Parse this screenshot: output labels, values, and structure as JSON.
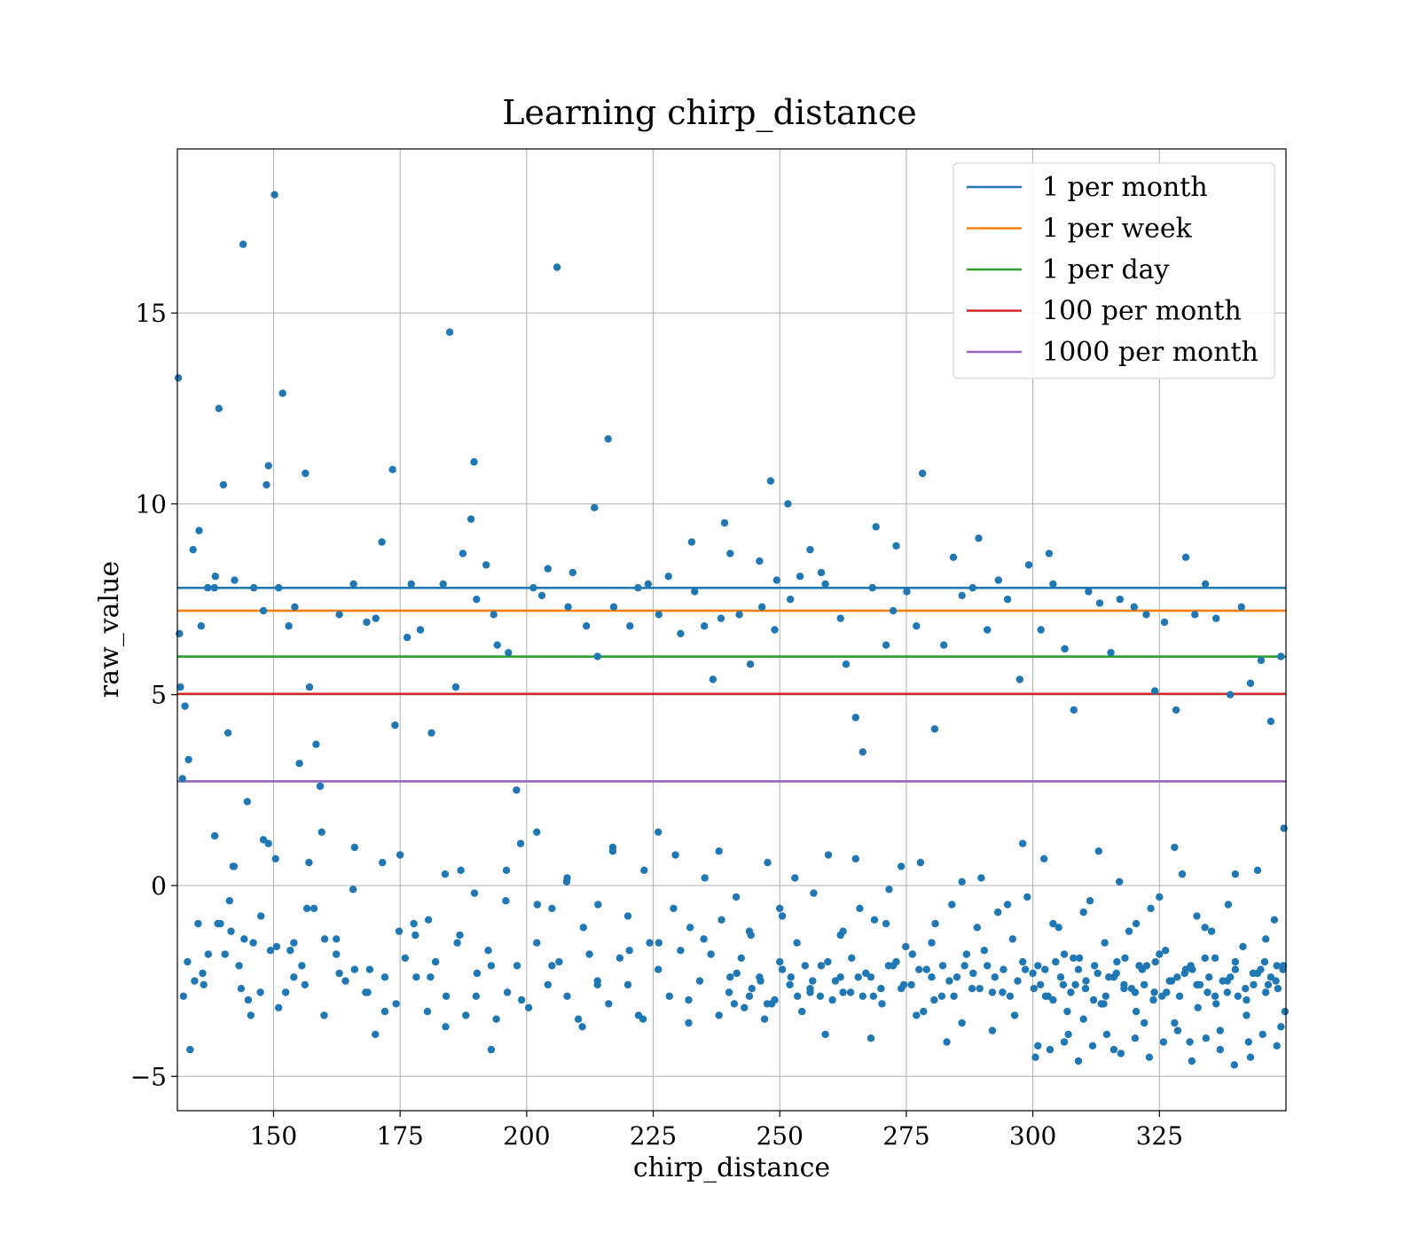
{
  "chart_data": {
    "type": "scatter",
    "title": "Learning chirp_distance",
    "xlabel": "chirp_distance",
    "ylabel": "raw_value",
    "xlim": [
      131,
      350
    ],
    "ylim": [
      -5.9,
      19.3
    ],
    "xticks": [
      150,
      175,
      200,
      225,
      250,
      275,
      300,
      325
    ],
    "xtick_labels": [
      "150",
      "175",
      "200",
      "225",
      "250",
      "275",
      "300",
      "325"
    ],
    "yticks": [
      -5,
      0,
      5,
      10,
      15
    ],
    "ytick_labels": [
      "−5",
      "0",
      "5",
      "10",
      "15"
    ],
    "grid": true,
    "legend_position": "top-right",
    "point_color": "#1f77b4",
    "thresholds": [
      {
        "name": "1 per month",
        "value": 7.8,
        "color": "#1f77b4"
      },
      {
        "name": "1 per week",
        "value": 7.2,
        "color": "#ff7f0e"
      },
      {
        "name": "1 per day",
        "value": 6.0,
        "color": "#2ca02c"
      },
      {
        "name": "100 per month",
        "value": 5.02,
        "color": "#d62728"
      },
      {
        "name": "1000 per month",
        "value": 2.73,
        "color": "#9467bd"
      }
    ],
    "points": {
      "x": [
        131.2,
        131.6,
        132.0,
        133.5,
        134.1,
        135.3,
        136.2,
        137.0,
        138.5,
        139.2,
        140.1,
        140.4,
        141.6,
        142.3,
        143.2,
        144.0,
        145.5,
        146.1,
        148.0,
        148.6,
        149.0,
        149.4,
        150.2,
        151.0,
        151.8,
        153.0,
        154.2,
        155.1,
        155.6,
        156.3,
        157.1,
        158.4,
        159.2,
        163.0,
        165.8,
        168.4,
        170.2,
        171.4,
        173.5,
        174.0,
        176.4,
        177.2,
        179.0,
        181.2,
        183.5,
        184.8,
        186.0,
        187.4,
        189.0,
        189.6,
        190.1,
        192.0,
        193.5,
        194.2,
        196.4,
        198.0,
        201.3,
        203.0,
        204.2,
        206.0,
        208.2,
        209.1,
        211.8,
        213.4,
        214.0,
        216.1,
        217.2,
        220.4,
        222.0,
        224.0,
        226.1,
        228.0,
        230.4,
        232.6,
        233.2,
        235.1,
        236.8,
        238.4,
        239.1,
        240.2,
        242.0,
        244.2,
        246.0,
        246.5,
        248.2,
        249.0,
        249.4,
        251.6,
        252.1,
        254.0,
        256.0,
        258.2,
        259.0,
        262.0,
        263.1,
        265.0,
        266.4,
        268.3,
        269.0,
        271.0,
        272.4,
        273.0,
        275.1,
        277.0,
        278.2,
        280.6,
        282.4,
        284.3,
        286.0,
        288.1,
        289.3,
        291.0,
        293.2,
        295.0,
        297.4,
        299.2,
        301.6,
        303.2,
        304.0,
        306.3,
        308.1,
        311.0,
        313.2,
        315.4,
        317.2,
        320.0,
        322.4,
        324.1,
        326.0,
        328.3,
        330.2,
        332.0,
        334.1,
        336.2,
        339.0,
        341.2,
        343.0,
        345.1,
        347.0,
        349.0,
        349.6,
        131.4,
        132.5,
        133.2,
        134.4,
        135.7,
        137.1,
        138.3,
        139.5,
        141.0,
        142.2,
        143.6,
        144.8,
        146.0,
        147.4,
        149.0,
        150.6,
        152.4,
        154.0,
        156.2,
        158.0,
        160.1,
        162.4,
        164.2,
        166.0,
        168.2,
        170.1,
        172.0,
        174.2,
        176.0,
        178.2,
        180.4,
        182.0,
        184.1,
        186.3,
        188.0,
        190.2,
        192.4,
        194.0,
        196.2,
        198.1,
        200.4,
        202.0,
        204.2,
        206.4,
        208.0,
        210.2,
        212.4,
        214.0,
        216.2,
        218.4,
        220.0,
        222.1,
        224.3,
        226.0,
        228.2,
        230.4,
        232.0,
        234.2,
        236.4,
        238.0,
        240.2,
        242.4,
        244.0,
        246.2,
        248.4,
        250.0,
        252.2,
        254.4,
        256.0,
        258.2,
        260.4,
        262.0,
        264.2,
        266.4,
        268.0,
        270.2,
        272.4,
        274.0,
        276.2,
        278.4,
        280.0,
        282.2,
        284.4,
        286.0,
        288.2,
        290.4,
        292.0,
        294.2,
        296.4,
        298.0,
        300.2,
        302.4,
        304.0,
        306.2,
        308.4,
        310.0,
        312.2,
        314.4,
        316.0,
        318.2,
        320.4,
        322.0,
        324.2,
        326.4,
        328.0,
        330.2,
        332.4,
        334.0,
        336.2,
        338.4,
        340.0,
        342.2,
        344.4,
        346.0,
        348.2,
        349.8,
        133.0,
        136.0,
        139.0,
        142.0,
        145.0,
        148.0,
        151.0,
        154.0,
        157.0,
        160.0,
        163.0,
        166.0,
        169.0,
        172.0,
        175.0,
        178.0,
        181.0,
        184.0,
        187.0,
        190.0,
        193.0,
        196.0,
        199.0,
        202.0,
        205.0,
        208.0,
        211.0,
        214.0,
        217.0,
        220.0,
        223.0,
        226.0,
        229.0,
        232.0,
        235.0,
        238.0,
        241.0,
        244.0,
        247.0,
        250.0,
        253.0,
        256.0,
        259.0,
        262.0,
        265.0,
        268.0,
        271.0,
        274.0,
        277.0,
        280.0,
        283.0,
        286.0,
        289.0,
        292.0,
        295.0,
        298.0,
        301.0,
        304.0,
        307.0,
        310.0,
        313.0,
        316.0,
        319.0,
        322.0,
        325.0,
        328.0,
        331.0,
        334.0,
        337.0,
        340.0,
        343.0,
        346.0,
        349.0,
        132.2,
        135.1,
        138.4,
        141.3,
        144.2,
        147.5,
        150.4,
        153.3,
        156.6,
        159.5,
        162.4,
        165.7,
        168.6,
        171.5,
        174.8,
        177.7,
        180.6,
        183.9,
        186.8,
        189.7,
        193.0,
        195.9,
        198.8,
        202.1,
        205.0,
        207.9,
        211.2,
        214.1,
        217.0,
        220.3,
        223.2,
        226.1,
        229.4,
        232.3,
        235.2,
        238.5,
        241.4,
        244.3,
        247.6,
        250.5,
        253.4,
        256.7,
        259.6,
        262.5,
        265.8,
        268.7,
        271.6,
        274.9,
        277.8,
        280.7,
        284.0,
        286.9,
        289.8,
        293.1,
        296.0,
        298.9,
        302.2,
        305.1,
        308.0,
        311.3,
        314.2,
        317.1,
        320.4,
        323.3,
        326.2,
        329.5,
        332.4,
        335.3,
        338.6,
        341.5,
        344.4,
        347.7,
        240.0,
        243.0,
        246.0,
        249.0,
        252.0,
        255.0,
        258.0,
        261.0,
        264.0,
        267.0,
        270.0,
        273.0,
        276.0,
        279.0,
        282.0,
        285.0,
        288.0,
        291.0,
        294.0,
        297.0,
        300.0,
        303.0,
        306.0,
        309.0,
        312.0,
        315.0,
        318.0,
        321.0,
        324.0,
        327.0,
        330.0,
        333.0,
        336.0,
        339.0,
        342.0,
        345.0,
        348.0,
        241.5,
        244.5,
        247.5,
        250.5,
        253.5,
        256.5,
        259.5,
        262.5,
        265.5,
        268.5,
        271.5,
        274.5,
        277.5,
        280.5,
        283.5,
        286.5,
        289.5,
        292.5,
        295.5,
        298.5,
        301.5,
        304.5,
        307.5,
        310.5,
        313.5,
        316.5,
        319.5,
        322.5,
        325.5,
        328.5,
        331.5,
        334.5,
        337.5,
        340.5,
        343.5,
        346.5,
        349.5,
        301.0,
        302.5,
        305.5,
        306.8,
        309.2,
        310.4,
        312.8,
        314.0,
        316.6,
        318.0,
        320.2,
        321.6,
        323.8,
        325.0,
        327.4,
        329.0,
        331.2,
        332.6,
        334.8,
        336.0,
        338.4,
        340.0,
        342.2,
        343.6,
        345.8,
        347.0,
        348.4,
        349.4,
        300.5,
        303.4,
        306.2,
        309.0,
        311.8,
        314.6,
        317.4,
        320.2,
        323.0,
        325.8,
        328.6,
        331.4,
        334.2,
        337.0,
        339.8,
        342.6,
        345.4,
        348.2
      ],
      "y": [
        13.3,
        5.2,
        2.8,
        -4.3,
        8.8,
        9.3,
        -2.6,
        7.8,
        8.1,
        12.5,
        10.5,
        -1.8,
        -1.2,
        8.0,
        -2.1,
        16.8,
        -3.4,
        7.8,
        7.2,
        10.5,
        11.0,
        -1.7,
        18.1,
        7.8,
        12.9,
        6.8,
        7.3,
        3.2,
        -2.1,
        10.8,
        5.2,
        3.7,
        2.6,
        7.1,
        7.9,
        6.9,
        7.0,
        9.0,
        10.9,
        4.2,
        6.5,
        7.9,
        6.7,
        4.0,
        7.9,
        14.5,
        5.2,
        8.7,
        9.6,
        11.1,
        7.5,
        8.4,
        7.1,
        6.3,
        6.1,
        2.5,
        7.8,
        7.6,
        8.3,
        16.2,
        7.3,
        8.2,
        6.8,
        9.9,
        6.0,
        11.7,
        7.3,
        6.8,
        7.8,
        7.9,
        7.1,
        8.1,
        6.6,
        9.0,
        7.7,
        6.8,
        5.4,
        7.0,
        9.5,
        8.7,
        7.1,
        5.8,
        8.5,
        7.3,
        10.6,
        6.7,
        8.0,
        10.0,
        7.5,
        8.1,
        8.8,
        8.2,
        7.9,
        7.0,
        5.8,
        4.4,
        3.5,
        7.8,
        9.4,
        6.3,
        7.2,
        8.9,
        7.7,
        6.8,
        10.8,
        4.1,
        6.3,
        8.6,
        7.6,
        7.8,
        9.1,
        6.7,
        8.0,
        7.5,
        5.4,
        8.4,
        6.7,
        8.7,
        7.9,
        6.2,
        4.6,
        7.7,
        7.4,
        6.1,
        7.5,
        7.3,
        7.1,
        5.1,
        6.9,
        4.6,
        8.6,
        7.1,
        7.9,
        7.0,
        5.0,
        7.3,
        5.3,
        5.9,
        4.3,
        6.0,
        1.5,
        6.6,
        4.7,
        3.3,
        -2.5,
        6.8,
        -1.8,
        7.8,
        -1.0,
        4.0,
        0.5,
        -2.7,
        2.2,
        -1.5,
        -2.8,
        1.1,
        -1.6,
        -2.8,
        -1.5,
        -2.6,
        -0.6,
        -1.4,
        -1.8,
        -2.5,
        -2.2,
        -2.8,
        -3.9,
        -2.4,
        -3.1,
        -1.9,
        -2.4,
        -3.3,
        -2.0,
        -2.9,
        -1.5,
        -3.4,
        -2.3,
        -1.7,
        -3.5,
        -2.8,
        -2.1,
        -3.2,
        -1.5,
        -2.6,
        -2.0,
        -2.9,
        -3.5,
        -1.8,
        -2.6,
        -3.1,
        -1.9,
        -2.6,
        -3.4,
        -1.5,
        -2.2,
        -2.9,
        -1.7,
        -3.0,
        -2.5,
        -1.8,
        -3.4,
        -2.4,
        -1.9,
        -2.9,
        -2.5,
        -3.1,
        -2.0,
        -2.4,
        -3.3,
        -2.7,
        -2.1,
        -3.0,
        -2.4,
        -1.9,
        -2.9,
        -2.4,
        -3.1,
        -2.1,
        -2.7,
        -1.8,
        -3.3,
        -2.4,
        -2.1,
        -2.9,
        -3.6,
        -2.3,
        -1.7,
        -2.8,
        -2.2,
        -3.4,
        -2.0,
        -2.7,
        -2.2,
        -3.0,
        -1.8,
        -2.6,
        -3.5,
        -2.1,
        -2.9,
        -2.4,
        -1.9,
        -3.3,
        -2.6,
        -2.0,
        -2.8,
        -3.6,
        -2.2,
        -2.6,
        -1.9,
        -3.1,
        -2.5,
        -2.0,
        -3.4,
        -2.3,
        -2.8,
        -2.1,
        -3.3,
        -2.0,
        -2.3,
        -1.0,
        0.5,
        -3.0,
        1.2,
        -3.2,
        -2.4,
        0.6,
        -3.4,
        -2.3,
        1.0,
        -2.2,
        -3.3,
        0.8,
        -1.3,
        -2.4,
        -3.7,
        0.4,
        -2.9,
        -4.3,
        0.4,
        -3.0,
        1.4,
        -2.1,
        0.2,
        -3.7,
        -2.5,
        1.0,
        -0.8,
        -3.5,
        1.4,
        -0.6,
        -3.6,
        -1.4,
        0.9,
        -3.1,
        -1.2,
        -3.5,
        -0.6,
        0.2,
        -2.8,
        -3.9,
        -1.3,
        0.7,
        -4.0,
        -1.0,
        0.5,
        -3.4,
        -1.5,
        -4.1,
        0.1,
        -1.1,
        -3.8,
        -0.5,
        1.1,
        -4.2,
        -1.0,
        -3.9,
        -0.7,
        0.9,
        -4.3,
        -1.2,
        -3.6,
        -0.3,
        1.0,
        -4.1,
        -1.1,
        -3.8,
        0.3,
        -4.5,
        -1.4,
        -3.7,
        -2.9,
        -1.0,
        1.3,
        -0.4,
        -1.4,
        -0.8,
        0.7,
        -1.7,
        -0.6,
        1.4,
        -1.4,
        -0.1,
        -2.8,
        0.6,
        -1.2,
        -1.0,
        -0.9,
        0.3,
        -1.3,
        -0.2,
        -2.1,
        -0.4,
        1.1,
        -0.5,
        -0.6,
        0.1,
        -1.1,
        -0.5,
        0.9,
        -1.7,
        0.4,
        -1.5,
        0.8,
        -1.1,
        0.2,
        -0.9,
        -0.3,
        -1.3,
        0.6,
        -0.8,
        -1.5,
        -0.2,
        0.8,
        -1.2,
        -0.6,
        -0.9,
        -0.1,
        -1.6,
        0.6,
        -1.0,
        -0.5,
        -1.8,
        0.2,
        -0.7,
        -1.4,
        -0.3,
        0.7,
        -1.1,
        -1.9,
        -0.4,
        -1.5,
        0.1,
        -1.0,
        -0.6,
        -1.7,
        0.3,
        -0.8,
        -1.2,
        -0.5,
        -1.6,
        0.4,
        -0.9,
        -2.8,
        -3.2,
        -2.4,
        -3.0,
        -2.6,
        -2.1,
        -2.9,
        -2.5,
        -2.8,
        -2.3,
        -2.7,
        -2.0,
        -2.6,
        -2.2,
        -2.9,
        -2.4,
        -2.7,
        -2.1,
        -2.8,
        -2.5,
        -2.3,
        -2.9,
        -2.6,
        -2.2,
        -3.0,
        -2.4,
        -2.7,
        -2.1,
        -2.8,
        -2.5,
        -2.3,
        -2.6,
        -2.9,
        -2.4,
        -2.7,
        -2.2,
        -2.5,
        -2.3,
        -2.7,
        -3.1,
        -2.2,
        -2.9,
        -2.5,
        -2.0,
        -2.8,
        -2.4,
        -2.9,
        -2.1,
        -2.6,
        -2.2,
        -3.0,
        -2.5,
        -2.1,
        -2.7,
        -2.4,
        -2.9,
        -2.2,
        -2.6,
        -2.0,
        -2.8,
        -2.5,
        -3.1,
        -2.3,
        -2.7,
        -2.1,
        -2.9,
        -2.4,
        -2.2,
        -2.8,
        -2.5,
        -2.9,
        -2.3,
        -2.6,
        -2.1,
        -2.1,
        -2.9,
        -2.4,
        -3.3,
        -1.9,
        -2.7,
        -2.3,
        -3.1,
        -2.0,
        -2.6,
        -2.8,
        -2.2,
        -3.0,
        -1.8,
        -2.5,
        -2.9,
        -2.1,
        -3.2,
        -2.4,
        -1.9,
        -2.8,
        -2.2,
        -3.0,
        -2.6,
        -2.0,
        -2.4,
        -2.7,
        -2.2,
        -4.5,
        -4.3,
        -4.1,
        -4.6,
        -4.2,
        -3.9,
        -4.4,
        -4.0,
        -4.5,
        -4.1,
        -3.8,
        -4.6,
        -4.0,
        -4.3,
        -4.7,
        -4.1,
        -3.9,
        -4.2
      ]
    }
  }
}
